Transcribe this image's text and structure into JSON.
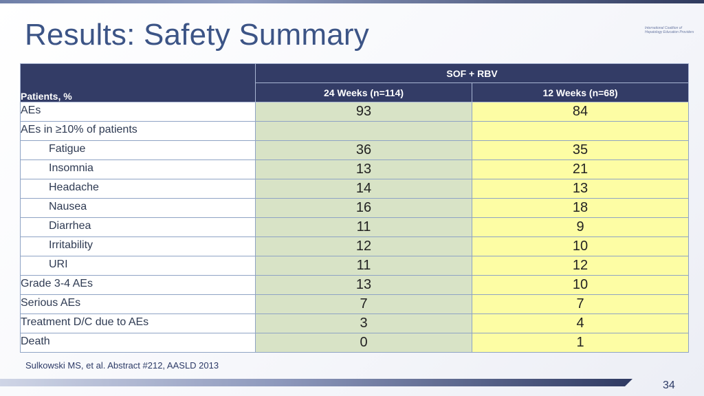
{
  "slide": {
    "title": "Results: Safety Summary",
    "logo_text": "International Coalition of Hepatology Education Providers",
    "citation": "Sulkowski MS, et al. Abstract #212, AASLD 2013",
    "page_number": "34"
  },
  "table": {
    "corner_header": "Patients, %",
    "group_header": "SOF + RBV",
    "columns": [
      "24 Weeks (n=114)",
      "12 Weeks (n=68)"
    ],
    "rows": [
      {
        "label": "AEs",
        "indent": false,
        "v24": "93",
        "v12": "84"
      },
      {
        "label": "AEs in ≥10% of patients",
        "indent": false,
        "v24": "",
        "v12": ""
      },
      {
        "label": "Fatigue",
        "indent": true,
        "v24": "36",
        "v12": "35"
      },
      {
        "label": "Insomnia",
        "indent": true,
        "v24": "13",
        "v12": "21"
      },
      {
        "label": "Headache",
        "indent": true,
        "v24": "14",
        "v12": "13"
      },
      {
        "label": "Nausea",
        "indent": true,
        "v24": "16",
        "v12": "18"
      },
      {
        "label": "Diarrhea",
        "indent": true,
        "v24": "11",
        "v12": "9"
      },
      {
        "label": "Irritability",
        "indent": true,
        "v24": "12",
        "v12": "10"
      },
      {
        "label": "URI",
        "indent": true,
        "v24": "11",
        "v12": "12"
      },
      {
        "label": "Grade 3-4 AEs",
        "indent": false,
        "v24": "13",
        "v12": "10"
      },
      {
        "label": "Serious AEs",
        "indent": false,
        "v24": "7",
        "v12": "7"
      },
      {
        "label": "Treatment D/C due to AEs",
        "indent": false,
        "v24": "3",
        "v12": "4"
      },
      {
        "label": "Death",
        "indent": false,
        "v24": "0",
        "v12": "1"
      }
    ]
  },
  "colors": {
    "header_bg": "#333c66",
    "col24_bg": "#d8e3c6",
    "col12_bg": "#fdfda4",
    "title_color": "#3c5486"
  }
}
